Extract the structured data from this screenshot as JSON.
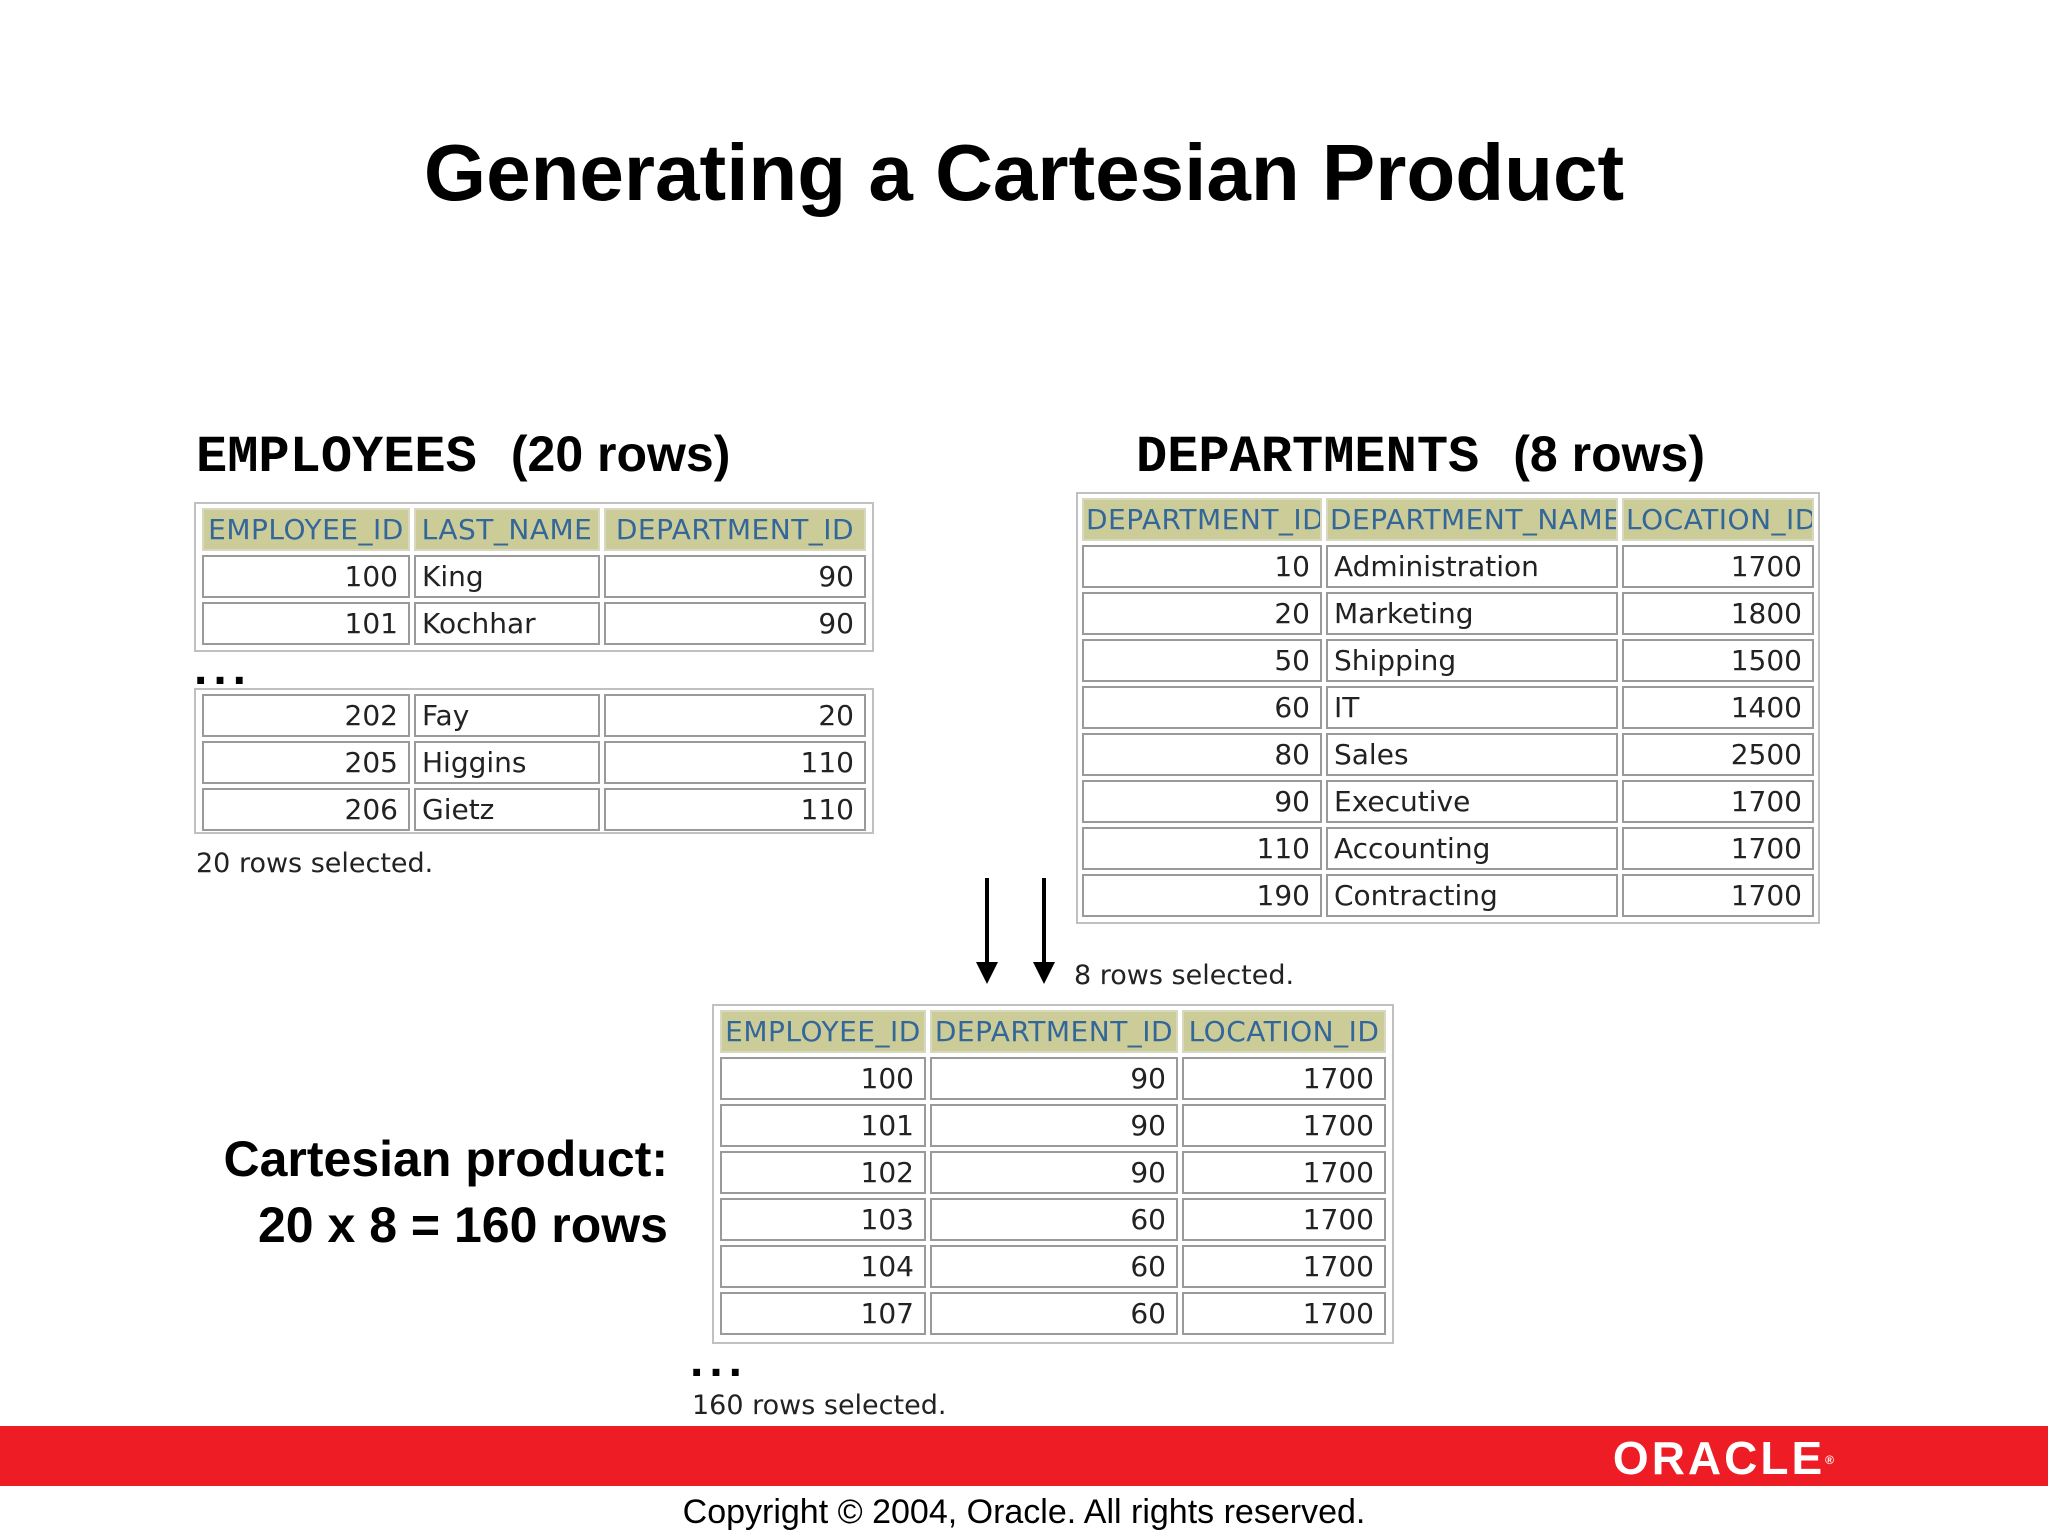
{
  "title": "Generating a Cartesian Product",
  "employees": {
    "caption_name": "EMPLOYEES",
    "caption_rows": "(20 rows)",
    "headers": [
      "EMPLOYEE_ID",
      "LAST_NAME",
      "DEPARTMENT_ID"
    ],
    "rows_top": [
      [
        "100",
        "King",
        "90"
      ],
      [
        "101",
        "Kochhar",
        "90"
      ]
    ],
    "ellipsis": "...",
    "rows_bottom": [
      [
        "202",
        "Fay",
        "20"
      ],
      [
        "205",
        "Higgins",
        "110"
      ],
      [
        "206",
        "Gietz",
        "110"
      ]
    ],
    "footer": "20 rows selected."
  },
  "departments": {
    "caption_name": "DEPARTMENTS",
    "caption_rows": "(8 rows)",
    "headers": [
      "DEPARTMENT_ID",
      "DEPARTMENT_NAME",
      "LOCATION_ID"
    ],
    "rows": [
      [
        "10",
        "Administration",
        "1700"
      ],
      [
        "20",
        "Marketing",
        "1800"
      ],
      [
        "50",
        "Shipping",
        "1500"
      ],
      [
        "60",
        "IT",
        "1400"
      ],
      [
        "80",
        "Sales",
        "2500"
      ],
      [
        "90",
        "Executive",
        "1700"
      ],
      [
        "110",
        "Accounting",
        "1700"
      ],
      [
        "190",
        "Contracting",
        "1700"
      ]
    ],
    "footer": "8 rows selected."
  },
  "cartesian": {
    "label_line1": "Cartesian product:",
    "label_line2": "20 x 8 = 160 rows",
    "headers": [
      "EMPLOYEE_ID",
      "DEPARTMENT_ID",
      "LOCATION_ID"
    ],
    "rows": [
      [
        "100",
        "90",
        "1700"
      ],
      [
        "101",
        "90",
        "1700"
      ],
      [
        "102",
        "90",
        "1700"
      ],
      [
        "103",
        "60",
        "1700"
      ],
      [
        "104",
        "60",
        "1700"
      ],
      [
        "107",
        "60",
        "1700"
      ]
    ],
    "ellipsis": "...",
    "footer": "160 rows selected."
  },
  "footer": {
    "logo": "ORACLE",
    "logo_mark": "®",
    "copyright": "Copyright © 2004, Oracle.  All rights reserved.",
    "bar_color": "#ee1c25"
  }
}
